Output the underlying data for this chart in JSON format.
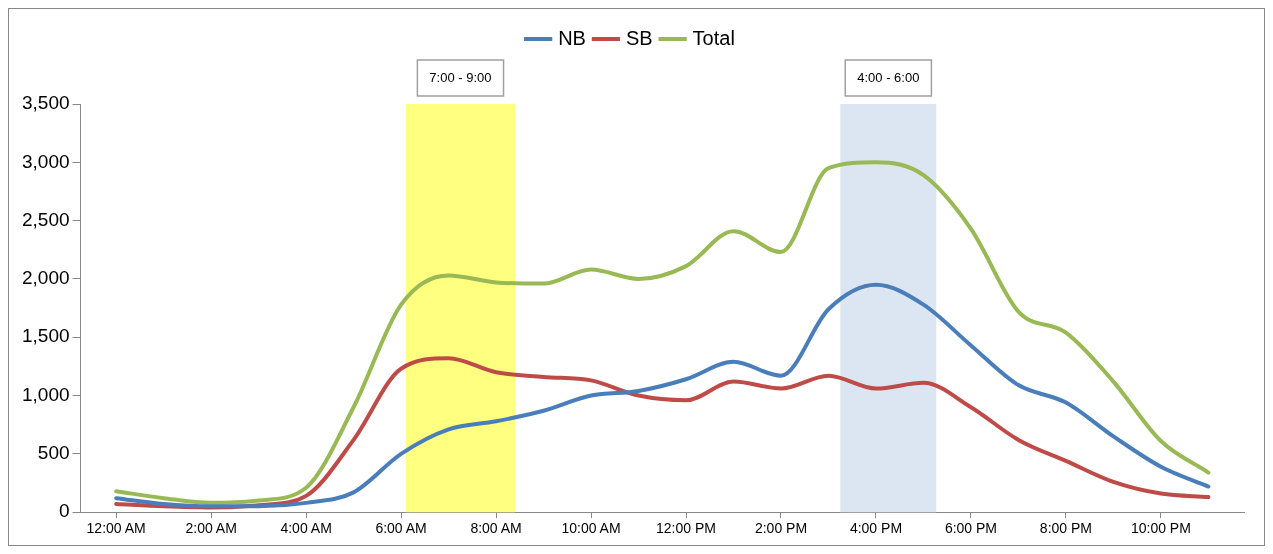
{
  "chart_data": {
    "type": "line",
    "x": [
      0,
      1,
      2,
      3,
      4,
      5,
      6,
      7,
      8,
      9,
      10,
      11,
      12,
      13,
      14,
      15,
      16,
      17,
      18,
      19,
      20,
      21,
      22,
      23
    ],
    "series": [
      {
        "name": "NB",
        "color": "#4a7ebb",
        "values": [
          120,
          70,
          50,
          50,
          80,
          170,
          500,
          710,
          780,
          870,
          1000,
          1040,
          1140,
          1290,
          1170,
          1740,
          1950,
          1780,
          1430,
          1090,
          940,
          650,
          390,
          220
        ]
      },
      {
        "name": "SB",
        "color": "#be4b48",
        "values": [
          70,
          50,
          40,
          60,
          140,
          620,
          1230,
          1320,
          1200,
          1160,
          1130,
          1000,
          960,
          1120,
          1060,
          1170,
          1060,
          1110,
          900,
          620,
          440,
          260,
          160,
          130
        ]
      },
      {
        "name": "Total",
        "color": "#98b954",
        "values": [
          180,
          120,
          80,
          100,
          210,
          900,
          1780,
          2030,
          1970,
          1960,
          2080,
          2000,
          2110,
          2410,
          2230,
          2950,
          3000,
          2890,
          2430,
          1720,
          1540,
          1120,
          610,
          340
        ]
      }
    ],
    "xlim": [
      -0.75,
      23.75
    ],
    "xticks": [
      {
        "value": 0,
        "label": "12:00 AM"
      },
      {
        "value": 2,
        "label": "2:00 AM"
      },
      {
        "value": 4,
        "label": "4:00 AM"
      },
      {
        "value": 6,
        "label": "6:00 AM"
      },
      {
        "value": 8,
        "label": "8:00 AM"
      },
      {
        "value": 10,
        "label": "10:00 AM"
      },
      {
        "value": 12,
        "label": "12:00 PM"
      },
      {
        "value": 14,
        "label": "2:00 PM"
      },
      {
        "value": 16,
        "label": "4:00 PM"
      },
      {
        "value": 18,
        "label": "6:00 PM"
      },
      {
        "value": 20,
        "label": "8:00 PM"
      },
      {
        "value": 22,
        "label": "10:00 PM"
      }
    ],
    "ylim": [
      0,
      3500
    ],
    "yticks": [
      {
        "value": 0,
        "label": "0"
      },
      {
        "value": 500,
        "label": "500"
      },
      {
        "value": 1000,
        "label": "1,000"
      },
      {
        "value": 1500,
        "label": "1,500"
      },
      {
        "value": 2000,
        "label": "2,000"
      },
      {
        "value": 2500,
        "label": "2,500"
      },
      {
        "value": 3000,
        "label": "3,000"
      },
      {
        "value": 3500,
        "label": "3,500"
      }
    ],
    "bands": [
      {
        "axis": "x",
        "from": 6.1,
        "to": 8.4,
        "label": "7:00 - 9:00",
        "color": "#ffff80"
      },
      {
        "axis": "x",
        "from": 15.25,
        "to": 17.27,
        "label": "4:00 - 6:00",
        "color": "#dce6f2"
      }
    ],
    "grid": false,
    "legend": "top",
    "marker": "none",
    "line_style": "solid"
  }
}
